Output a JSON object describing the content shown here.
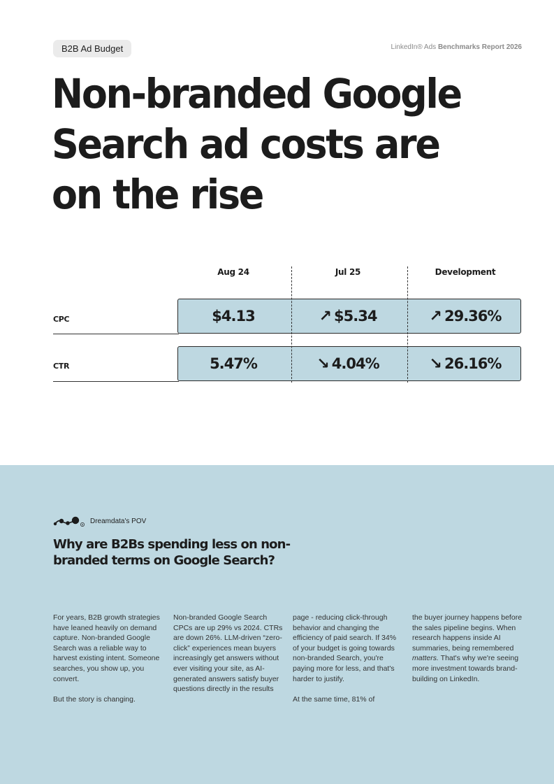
{
  "header": {
    "tag": "B2B Ad Budget",
    "report_prefix": "LinkedIn® Ads",
    "report_bold": "Benchmarks Report 2026"
  },
  "title": "Non-branded Google Search ad costs are on the rise",
  "table": {
    "columns": [
      "Aug 24",
      "Jul 25",
      "Development"
    ],
    "rows": [
      {
        "label": "CPC",
        "aug24": "$4.13",
        "jul25": "$5.34",
        "jul25_arrow": "up",
        "development": "29.36%",
        "development_arrow": "up"
      },
      {
        "label": "CTR",
        "aug24": "5.47%",
        "jul25": "4.04%",
        "jul25_arrow": "down",
        "development": "26.16%",
        "development_arrow": "down"
      }
    ],
    "accent_color": "#bed8e1"
  },
  "pov": {
    "label": "Dreamdata's POV",
    "heading": "Why are B2Bs spending less on non-branded terms on Google Search?",
    "columns": [
      [
        "For years, B2B growth strategies have leaned heavily on demand capture. Non-branded Google Search was a reliable way to harvest existing intent. Someone searches, you show up, you convert.",
        "But the story is changing."
      ],
      [
        "Non-branded Google Search CPCs are up 29% vs 2024. CTRs are down 26%. LLM-driven “zero-click” experiences mean buyers increasingly get answers without ever visiting your site, as AI-generated answers satisfy buyer questions directly in the results"
      ],
      [
        "page - reducing click-through behavior and changing the efficiency of paid search. If 34% of your budget is going towards non-branded Search, you're paying more for less, and that's harder to justify.",
        "At the same time, 81% of"
      ],
      [
        "the buyer journey happens before the sales pipeline begins. When research happens inside AI summaries, being remembered ",
        "matters.",
        " That's why we're seeing more investment towards brand-building on LinkedIn."
      ]
    ]
  }
}
